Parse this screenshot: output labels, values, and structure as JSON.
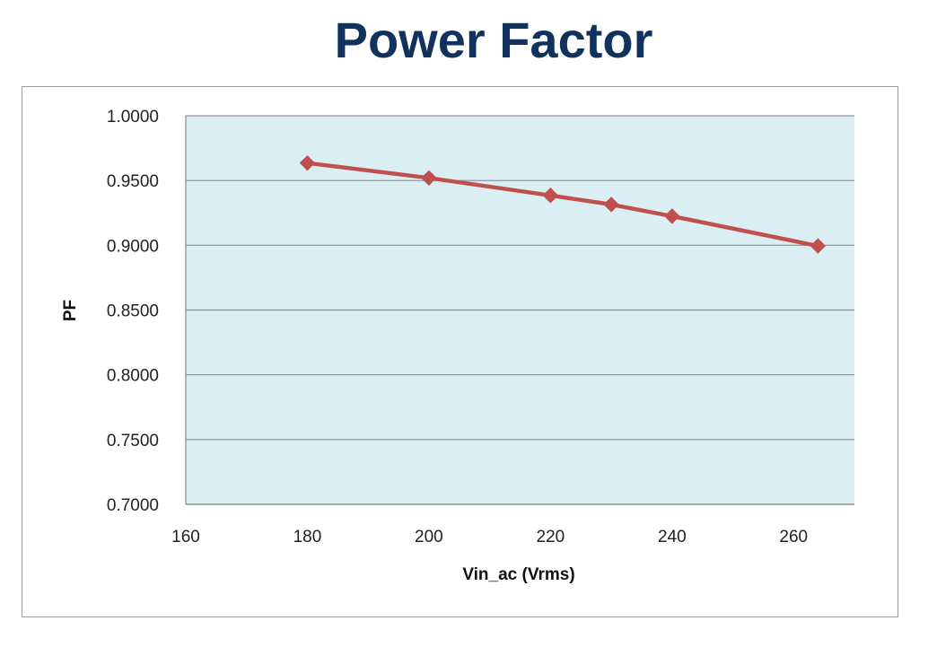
{
  "page": {
    "title": "Power Factor"
  },
  "chart_data": {
    "type": "line",
    "title": "Power Factor",
    "xlabel": "Vin_ac (Vrms)",
    "ylabel": "PF",
    "xlim": [
      160,
      270
    ],
    "ylim": [
      0.7,
      1.0
    ],
    "x_ticks": [
      "160",
      "180",
      "200",
      "220",
      "240",
      "260"
    ],
    "x_tick_values": [
      160,
      180,
      200,
      220,
      240,
      260
    ],
    "y_ticks": [
      "0.7000",
      "0.7500",
      "0.8000",
      "0.8500",
      "0.9000",
      "0.9500",
      "1.0000"
    ],
    "y_tick_values": [
      0.7,
      0.75,
      0.8,
      0.85,
      0.9,
      0.95,
      1.0
    ],
    "grid": "horizontal",
    "series": [
      {
        "x": [
          180,
          200,
          220,
          230,
          240,
          264
        ],
        "y": [
          0.9635,
          0.952,
          0.9385,
          0.9315,
          0.9225,
          0.8995
        ],
        "color": "#c0504d",
        "marker": "diamond"
      }
    ],
    "plot_background": "#dbeef4",
    "gridline_color": "#8c8c8c"
  }
}
